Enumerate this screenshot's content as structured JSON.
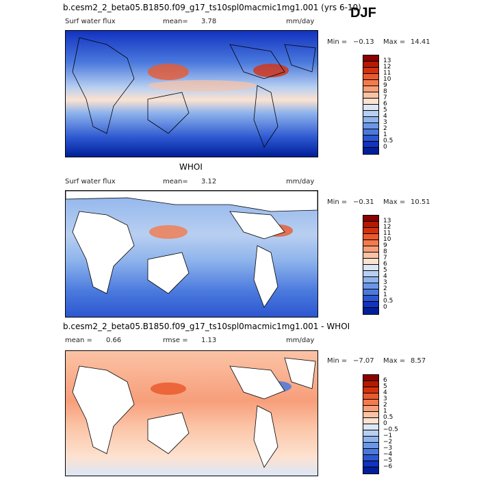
{
  "season": "DJF",
  "panels": [
    {
      "title": "b.cesm2_2_beta05.B1850.f09_g17_ts10spl0macmic1mg1.001 (yrs 6-10)",
      "var_label": "Surf water flux",
      "mean_label": "mean=",
      "mean_value": "3.78",
      "units": "mm/day",
      "min_label": "Min =",
      "min_value": "−0.13",
      "max_label": "Max =",
      "max_value": "14.41",
      "colorbar": {
        "labels": [
          "13",
          "12",
          "11",
          "10",
          "9",
          "8",
          "7",
          "6",
          "5",
          "4",
          "3",
          "2",
          "1",
          "0.5",
          "0"
        ],
        "colors": [
          "#8b0000",
          "#b51a00",
          "#d6310f",
          "#ea5a2e",
          "#f37a4c",
          "#f79e7a",
          "#fbc3a5",
          "#fde2d0",
          "#dbe6f7",
          "#b8cff1",
          "#8fb4ec",
          "#6b98e6",
          "#4a79dd",
          "#2c57d0",
          "#1232c0",
          "#001f9a"
        ]
      }
    },
    {
      "title": "WHOI",
      "var_label": "Surf water flux",
      "mean_label": "mean=",
      "mean_value": "3.12",
      "units": "mm/day",
      "min_label": "Min =",
      "min_value": "−0.31",
      "max_label": "Max =",
      "max_value": "10.51",
      "colorbar": {
        "labels": [
          "13",
          "12",
          "11",
          "10",
          "9",
          "8",
          "7",
          "6",
          "5",
          "4",
          "3",
          "2",
          "1",
          "0.5",
          "0"
        ],
        "colors": [
          "#8b0000",
          "#b51a00",
          "#d6310f",
          "#ea5a2e",
          "#f37a4c",
          "#f79e7a",
          "#fbc3a5",
          "#fde2d0",
          "#dbe6f7",
          "#b8cff1",
          "#8fb4ec",
          "#6b98e6",
          "#4a79dd",
          "#2c57d0",
          "#1232c0",
          "#001f9a"
        ]
      }
    },
    {
      "title": "b.cesm2_2_beta05.B1850.f09_g17_ts10spl0macmic1mg1.001 - WHOI",
      "mean_label": "mean =",
      "mean_value": "0.66",
      "rmse_label": "rmse =",
      "rmse_value": "1.13",
      "units": "mm/day",
      "min_label": "Min =",
      "min_value": "−7.07",
      "max_label": "Max =",
      "max_value": "8.57",
      "colorbar": {
        "labels": [
          "6",
          "5",
          "4",
          "3",
          "2",
          "1",
          "0.5",
          "0",
          "−0.5",
          "−1",
          "−2",
          "−3",
          "−4",
          "−5",
          "−6"
        ],
        "colors": [
          "#8b0000",
          "#b51a00",
          "#d6310f",
          "#ea5a2e",
          "#f37a4c",
          "#f79e7a",
          "#fbc3a5",
          "#fde2d0",
          "#dbe6f7",
          "#b8cff1",
          "#8fb4ec",
          "#6b98e6",
          "#4a79dd",
          "#2c57d0",
          "#1232c0",
          "#001f9a"
        ]
      }
    }
  ]
}
